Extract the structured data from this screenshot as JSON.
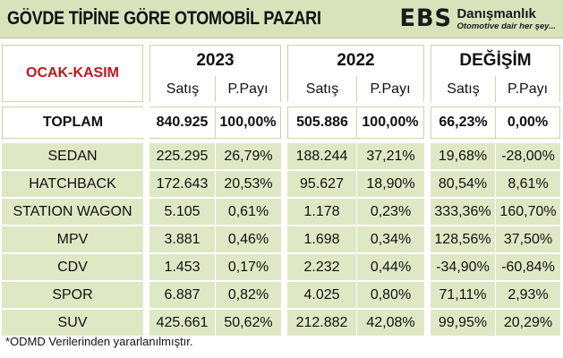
{
  "header": {
    "title": "GÖVDE TİPİNE GÖRE OTOMOBİL PAZARI",
    "logo_mark": "EBS",
    "logo_name": "Danışmanlık",
    "logo_tagline": "Otomotive dair her şey..."
  },
  "table": {
    "period_label": "OCAK-KASIM",
    "groups": [
      {
        "label": "2023",
        "sub": [
          "Satış",
          "P.Payı"
        ]
      },
      {
        "label": "2022",
        "sub": [
          "Satış",
          "P.Payı"
        ]
      },
      {
        "label": "DEĞİŞİM",
        "sub": [
          "Satış",
          "P.Payı"
        ]
      }
    ],
    "total": {
      "label": "TOPLAM",
      "cells": [
        "840.925",
        "100,00%",
        "505.886",
        "100,00%",
        "66,23%",
        "0,00%"
      ]
    },
    "rows": [
      {
        "label": "SEDAN",
        "cells": [
          "225.295",
          "26,79%",
          "188.244",
          "37,21%",
          "19,68%",
          "-28,00%"
        ]
      },
      {
        "label": "HATCHBACK",
        "cells": [
          "172.643",
          "20,53%",
          "95.627",
          "18,90%",
          "80,54%",
          "8,61%"
        ]
      },
      {
        "label": "STATION WAGON",
        "cells": [
          "5.105",
          "0,61%",
          "1.178",
          "0,23%",
          "333,36%",
          "160,70%"
        ]
      },
      {
        "label": "MPV",
        "cells": [
          "3.881",
          "0,46%",
          "1.698",
          "0,34%",
          "128,56%",
          "37,50%"
        ]
      },
      {
        "label": "CDV",
        "cells": [
          "1.453",
          "0,17%",
          "2.232",
          "0,44%",
          "-34,90%",
          "-60,84%"
        ]
      },
      {
        "label": "SPOR",
        "cells": [
          "6.887",
          "0,82%",
          "4.025",
          "0,80%",
          "71,11%",
          "2,93%"
        ]
      },
      {
        "label": "SUV",
        "cells": [
          "425.661",
          "50,62%",
          "212.882",
          "42,08%",
          "99,95%",
          "20,29%"
        ]
      }
    ]
  },
  "footnote": "*ODMD Verilerinden yararlanılmıştır.",
  "colors": {
    "header_bg": "#d8e3bb",
    "row_bg": "#dfe8c5",
    "period_label": "#c0161d"
  }
}
